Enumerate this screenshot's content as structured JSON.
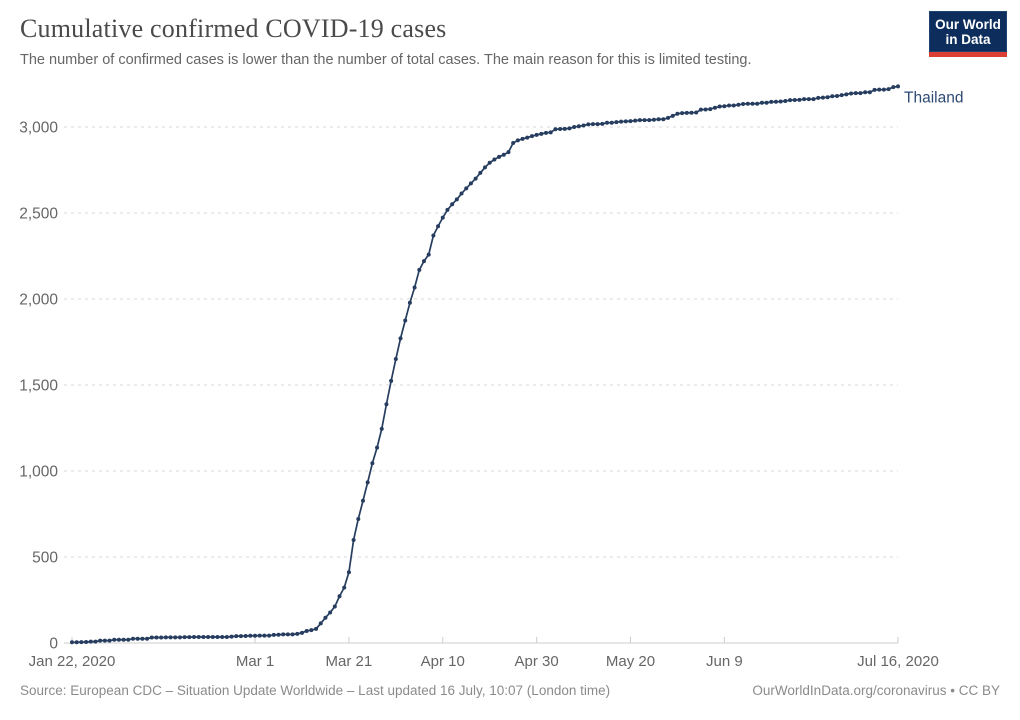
{
  "header": {
    "title": "Cumulative confirmed COVID-19 cases",
    "subtitle": "The number of confirmed cases is lower than the number of total cases. The main reason for this is limited testing."
  },
  "logo": {
    "line1": "Our World",
    "line2": "in Data",
    "bg_color": "#0d2e5c",
    "bar_color": "#dc3e34"
  },
  "footer": {
    "source": "Source: European CDC – Situation Update Worldwide – Last updated 16 July, 10:07 (London time)",
    "license": "OurWorldInData.org/coronavirus • CC BY"
  },
  "chart_data": {
    "type": "line",
    "title": "Cumulative confirmed COVID-19 cases",
    "series_label": "Thailand",
    "line_color": "#263d5f",
    "label_color": "#2d4a73",
    "grid_color": "#dadada",
    "axis_color": "#cccccc",
    "tick_label_color": "#666666",
    "grid": true,
    "legend_position": "end-of-line",
    "x_start_date": "2020-01-22",
    "x_end_date": "2020-07-16",
    "ylim": [
      0,
      3000
    ],
    "y_ticks": [
      {
        "value": 0,
        "label": "0"
      },
      {
        "value": 500,
        "label": "500"
      },
      {
        "value": 1000,
        "label": "1,000"
      },
      {
        "value": 1500,
        "label": "1,500"
      },
      {
        "value": 2000,
        "label": "2,000"
      },
      {
        "value": 2500,
        "label": "2,500"
      },
      {
        "value": 3000,
        "label": "3,000"
      }
    ],
    "x_ticks": [
      {
        "day": 0,
        "label": "Jan 22, 2020"
      },
      {
        "day": 39,
        "label": "Mar 1"
      },
      {
        "day": 59,
        "label": "Mar 21"
      },
      {
        "day": 79,
        "label": "Apr 10"
      },
      {
        "day": 99,
        "label": "Apr 30"
      },
      {
        "day": 119,
        "label": "May 20"
      },
      {
        "day": 139,
        "label": "Jun 9"
      },
      {
        "day": 176,
        "label": "Jul 16, 2020"
      }
    ],
    "values": [
      4,
      4,
      5,
      6,
      8,
      8,
      14,
      14,
      14,
      19,
      19,
      19,
      19,
      25,
      25,
      25,
      25,
      32,
      32,
      32,
      33,
      33,
      33,
      33,
      34,
      34,
      35,
      35,
      35,
      35,
      35,
      35,
      35,
      35,
      37,
      40,
      40,
      41,
      42,
      42,
      43,
      43,
      43,
      47,
      48,
      50,
      50,
      50,
      53,
      59,
      70,
      75,
      82,
      114,
      147,
      177,
      212,
      272,
      322,
      411,
      599,
      721,
      827,
      934,
      1045,
      1136,
      1245,
      1388,
      1524,
      1651,
      1771,
      1875,
      1978,
      2067,
      2169,
      2220,
      2258,
      2369,
      2423,
      2473,
      2518,
      2551,
      2579,
      2613,
      2643,
      2672,
      2700,
      2733,
      2765,
      2792,
      2811,
      2826,
      2839,
      2854,
      2907,
      2922,
      2931,
      2938,
      2947,
      2954,
      2960,
      2966,
      2969,
      2987,
      2988,
      2989,
      2992,
      3000,
      3004,
      3009,
      3015,
      3017,
      3017,
      3018,
      3025,
      3025,
      3028,
      3031,
      3033,
      3034,
      3037,
      3040,
      3040,
      3040,
      3042,
      3045,
      3045,
      3053,
      3065,
      3077,
      3081,
      3082,
      3083,
      3084,
      3101,
      3102,
      3104,
      3112,
      3119,
      3121,
      3125,
      3125,
      3129,
      3134,
      3135,
      3135,
      3135,
      3141,
      3141,
      3146,
      3147,
      3148,
      3151,
      3156,
      3157,
      3158,
      3162,
      3162,
      3162,
      3169,
      3171,
      3173,
      3179,
      3180,
      3185,
      3190,
      3195,
      3197,
      3197,
      3202,
      3202,
      3216,
      3217,
      3217,
      3220,
      3232,
      3236
    ]
  }
}
